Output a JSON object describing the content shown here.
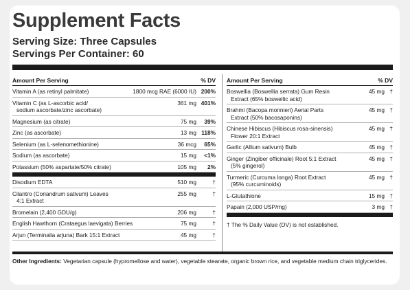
{
  "title": "Supplement Facts",
  "serving_size": "Serving Size: Three Capsules",
  "servings_per_container": "Servings Per Container: 60",
  "left_header": {
    "amount": "Amount Per Serving",
    "dv": "% DV"
  },
  "right_header": {
    "amount": "Amount Per Serving",
    "dv": "% DV"
  },
  "left_rows_dv": [
    {
      "name": "Vitamin A (as retinyl palmitate)",
      "amount": "1800 mcg RAE (6000 IU)",
      "dv": "200%"
    },
    {
      "name": "Vitamin C (as L-ascorbic acid/",
      "name2": "sodium ascorbate/zinc ascorbate)",
      "amount": "361 mg",
      "dv": "401%"
    },
    {
      "name": "Magnesium (as citrate)",
      "amount": "75 mg",
      "dv": "39%"
    },
    {
      "name": "Zinc (as ascorbate)",
      "amount": "13 mg",
      "dv": "118%"
    },
    {
      "name": "Selenium (as L-selenomethionine)",
      "amount": "36 mcg",
      "dv": "65%"
    },
    {
      "name": "Sodium (as ascorbate)",
      "amount": "15 mg",
      "dv": "<1%"
    },
    {
      "name": "Potassium (50% aspartate/50% citrate)",
      "amount": "105 mg",
      "dv": "2%"
    }
  ],
  "left_rows_nodv": [
    {
      "name": "Disodium EDTA",
      "amount": "510 mg",
      "dv": "†"
    },
    {
      "name": "Cilantro (Coriandrum sativum) Leaves",
      "name2": "4:1 Extract",
      "amount": "255 mg",
      "dv": "†"
    },
    {
      "name": "Bromelain (2,400 GDU/g)",
      "amount": "206 mg",
      "dv": "†"
    },
    {
      "name": "English Hawthorn (Crataegus laevigata) Berries",
      "amount": "75 mg",
      "dv": "†"
    },
    {
      "name": "Arjun (Terminalia arjuna) Bark 15:1 Extract",
      "amount": "45 mg",
      "dv": "†"
    }
  ],
  "right_rows": [
    {
      "name": "Boswellia (Boswellia serrata) Gum Resin",
      "name2": "Extract (65% boswellic acid)",
      "amount": "45 mg",
      "dv": "†"
    },
    {
      "name": "Brahmi (Bacopa monnieri) Aerial Parts",
      "name2": "Extract (50% bacosaponins)",
      "amount": "45 mg",
      "dv": "†"
    },
    {
      "name": "Chinese Hibiscus (Hibiscus rosa-sinensis)",
      "name2": "Flower 20:1 Extract",
      "amount": "45 mg",
      "dv": "†"
    },
    {
      "name": "Garlic (Allium sativum) Bulb",
      "amount": "45 mg",
      "dv": "†"
    },
    {
      "name": "Ginger (Zingiber officinale) Root 5:1 Extract",
      "name2": "(5% gingerol)",
      "amount": "45 mg",
      "dv": "†"
    },
    {
      "name": "Turmeric (Curcuma longa) Root Extract",
      "name2": "(95% curcuminoids)",
      "amount": "45 mg",
      "dv": "†"
    },
    {
      "name": "L-Glutathione",
      "amount": "15 mg",
      "dv": "†"
    },
    {
      "name": "Papain (2,000 USP/mg)",
      "amount": "3 mg",
      "dv": "†"
    }
  ],
  "dv_note": "† The % Daily Value (DV) is not established.",
  "other_ingredients": {
    "label": "Other Ingredients:",
    "text": " Vegetarian capsule (hypromellose and water), vegetable stearate, organic brown rice, and vegetable medium chain triglycerides."
  }
}
